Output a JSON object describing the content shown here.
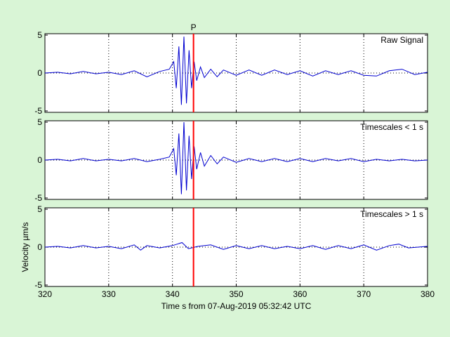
{
  "chart_data": {
    "type": "line",
    "xlabel": "Time s from 07-Aug-2019 05:32:42 UTC",
    "ylabel": "Velocity µm/s",
    "xlim": [
      320,
      380
    ],
    "ylim": [
      -5,
      5
    ],
    "x_ticks": [
      320,
      330,
      340,
      350,
      360,
      370,
      380
    ],
    "y_ticks": [
      -5,
      0,
      5
    ],
    "grid": true,
    "pick": {
      "label": "P",
      "time": 343.3
    },
    "colors": {
      "background": "#d9f5d6",
      "trace": "#0000d0",
      "pick": "#ff0000"
    },
    "panels": [
      {
        "label": "Raw Signal",
        "series": {
          "x": [
            320,
            322,
            324,
            326,
            328,
            330,
            332,
            334,
            336,
            338,
            339.5,
            340.2,
            340.6,
            341.0,
            341.4,
            341.8,
            342.2,
            342.6,
            343.0,
            343.4,
            343.8,
            344.4,
            345,
            346,
            347,
            348,
            350,
            352,
            354,
            356,
            358,
            360,
            362,
            364,
            366,
            368,
            370,
            372,
            374,
            376,
            378,
            380
          ],
          "y": [
            0,
            0.1,
            -0.1,
            0.2,
            -0.1,
            0.1,
            -0.2,
            0.3,
            -0.5,
            0.2,
            0.5,
            1.5,
            -2.0,
            3.5,
            -4.2,
            4.8,
            -4.0,
            3.0,
            -2.0,
            1.5,
            -1.0,
            0.8,
            -0.6,
            0.5,
            -0.5,
            0.4,
            -0.3,
            0.4,
            -0.3,
            0.4,
            -0.2,
            0.3,
            -0.4,
            0.3,
            -0.2,
            0.3,
            -0.3,
            -0.4,
            0.3,
            0.5,
            -0.2,
            0.1
          ]
        }
      },
      {
        "label": "Timescales < 1 s",
        "series": {
          "x": [
            320,
            322,
            324,
            326,
            328,
            330,
            332,
            334,
            336,
            338,
            339.5,
            340.2,
            340.6,
            341.0,
            341.4,
            341.8,
            342.2,
            342.6,
            343.0,
            343.4,
            343.8,
            344.4,
            345,
            346,
            347,
            348,
            350,
            352,
            354,
            356,
            358,
            360,
            362,
            364,
            366,
            368,
            370,
            372,
            374,
            376,
            378,
            380
          ],
          "y": [
            0,
            0.1,
            -0.1,
            0.2,
            -0.1,
            0.1,
            -0.1,
            0.2,
            -0.2,
            0.1,
            0.4,
            1.5,
            -2.0,
            3.5,
            -4.5,
            5.0,
            -4.0,
            3.2,
            -2.5,
            1.8,
            -1.2,
            1.0,
            -0.8,
            0.6,
            -0.5,
            0.4,
            -0.3,
            0.2,
            -0.2,
            0.2,
            -0.2,
            0.2,
            -0.2,
            0.2,
            -0.1,
            0.2,
            -0.2,
            0.1,
            -0.1,
            0.1,
            -0.1,
            0
          ]
        }
      },
      {
        "label": "Timescales > 1 s",
        "series": {
          "x": [
            320,
            322,
            324,
            326,
            328,
            330,
            332,
            334,
            335,
            336,
            338,
            340,
            341.5,
            342.5,
            344,
            346,
            348,
            350,
            352,
            354,
            356,
            358,
            360,
            362,
            364,
            366,
            368,
            370,
            372,
            374,
            375.5,
            377,
            380
          ],
          "y": [
            0,
            0.1,
            -0.1,
            0.2,
            -0.1,
            0.1,
            -0.2,
            0.3,
            -0.4,
            0.2,
            -0.1,
            0.2,
            0.6,
            -0.2,
            0.1,
            0.3,
            -0.3,
            0.2,
            -0.2,
            0.2,
            -0.2,
            0.1,
            -0.2,
            0.2,
            -0.3,
            0.2,
            -0.2,
            0.3,
            -0.4,
            0.2,
            0.4,
            -0.1,
            0.1
          ]
        }
      }
    ]
  }
}
